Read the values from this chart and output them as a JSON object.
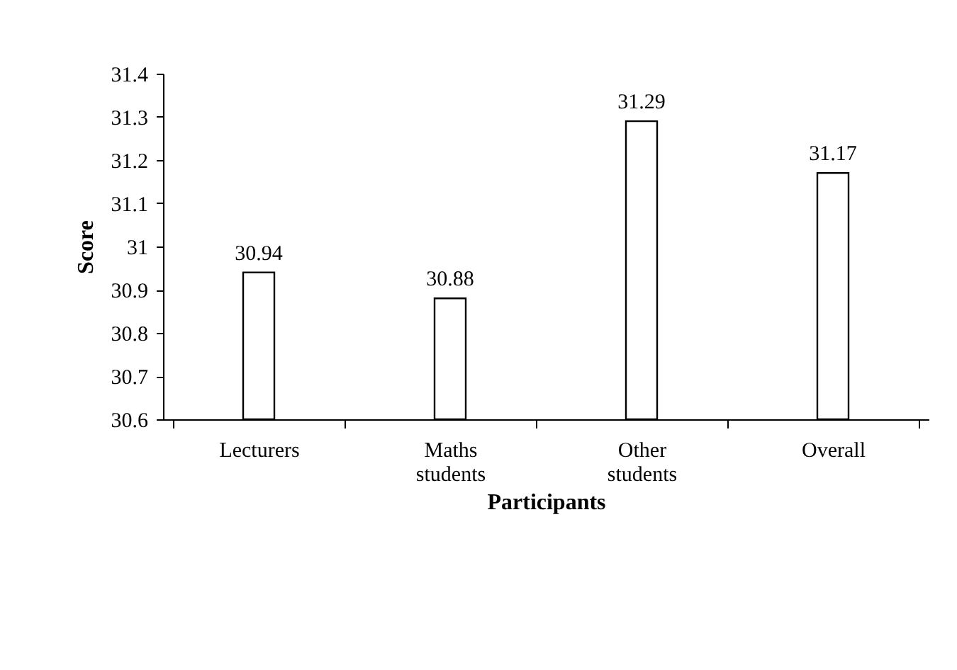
{
  "chart_data": {
    "type": "bar",
    "xlabel": "Participants",
    "ylabel": "Score",
    "categories": [
      "Lecturers",
      "Maths students",
      "Other students",
      "Overall"
    ],
    "values": [
      30.94,
      30.88,
      31.29,
      31.17
    ],
    "color": "#ffffff",
    "ylim": [
      30.6,
      31.4
    ],
    "yticks": [
      30.6,
      30.7,
      30.8,
      30.9,
      31,
      31.1,
      31.2,
      31.3,
      31.4
    ],
    "data_labels": true,
    "grid": false
  }
}
